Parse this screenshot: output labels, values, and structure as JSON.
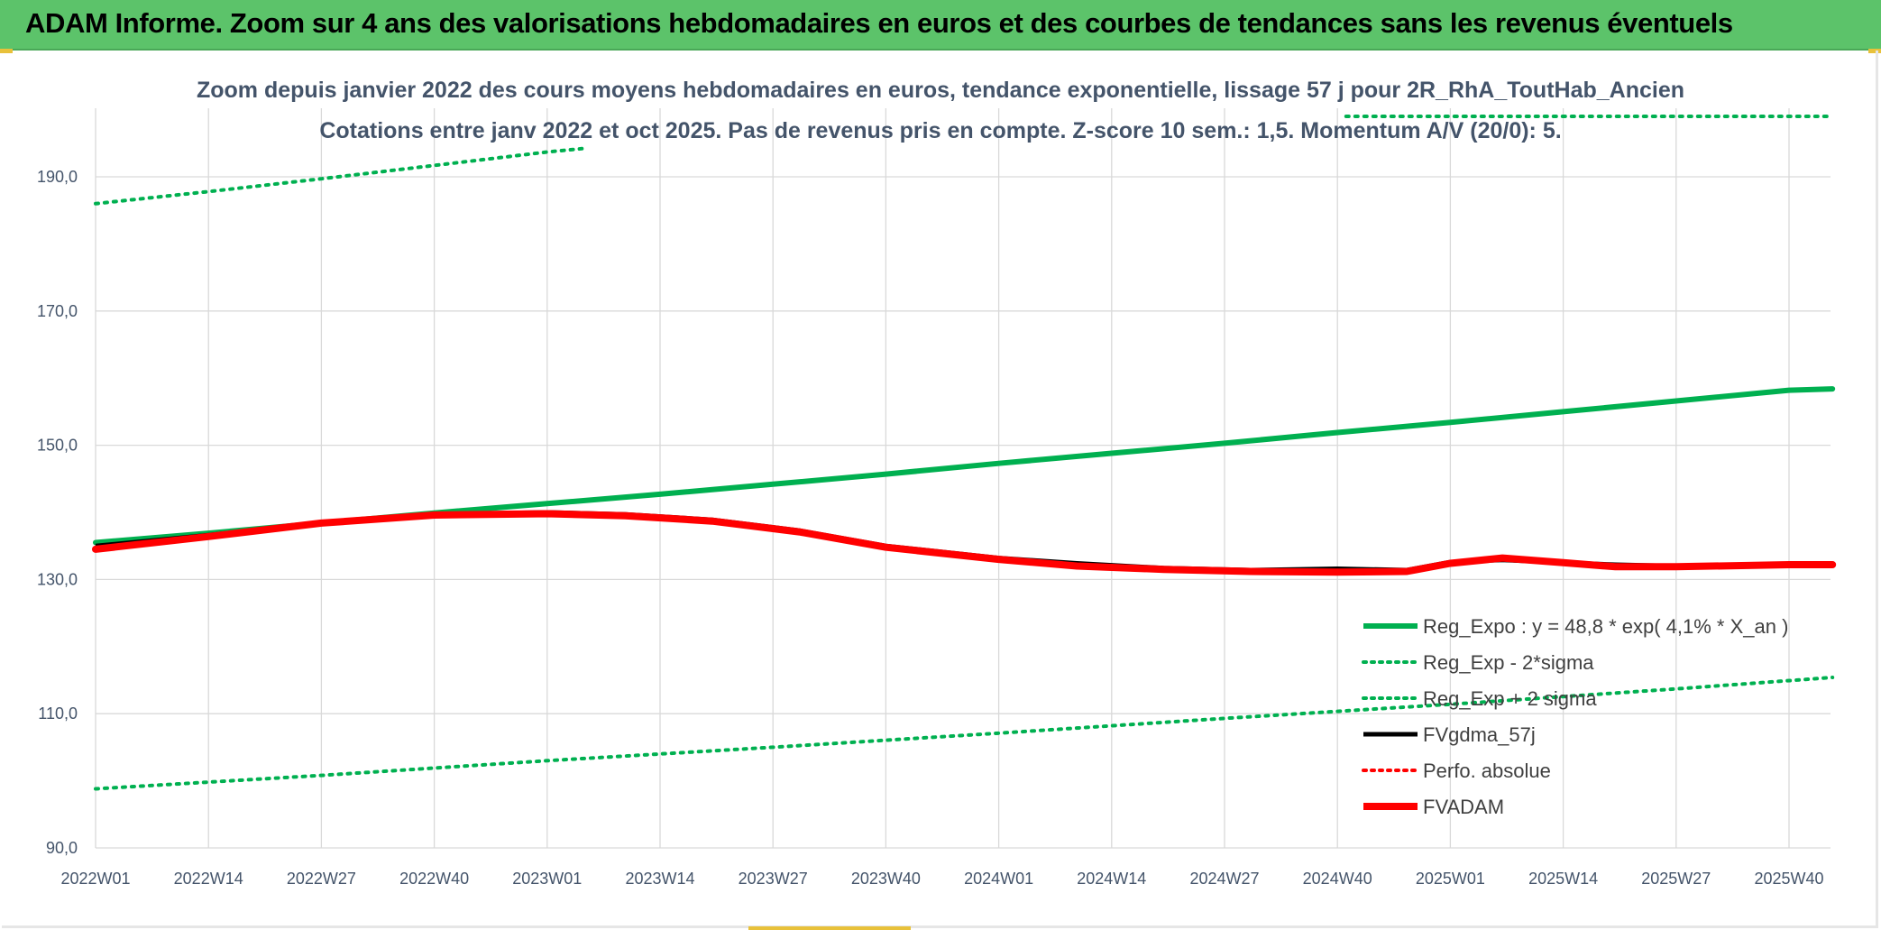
{
  "banner": {
    "title": "ADAM Informe. Zoom sur 4 ans des valorisations hebdomadaires en euros et des courbes de tendances sans les revenus éventuels"
  },
  "colors": {
    "banner": "#5cc36a",
    "trend": "#00b050",
    "smooth": "#000000",
    "price": "#ff0000",
    "grid": "#d9d9d9",
    "text": "#44546a"
  },
  "chart_data": {
    "type": "line",
    "title": "Zoom depuis janvier 2022 des cours moyens hebdomadaires en euros, tendance exponentielle, lissage 57 j pour 2R_RhA_ToutHab_Ancien",
    "subtitle": "Cotations entre janv 2022 et oct 2025. Pas de revenus pris en compte. Z-score 10 sem.: 1,5. Momentum A/V (20/0): 5.",
    "x_tick_labels": [
      "2022W01",
      "2022W14",
      "2022W27",
      "2022W40",
      "2023W01",
      "2023W14",
      "2023W27",
      "2023W40",
      "2024W01",
      "2024W14",
      "2024W27",
      "2024W40",
      "2025W01",
      "2025W14",
      "2025W27",
      "2025W40"
    ],
    "y_tick_labels": [
      "90,0",
      "110,0",
      "130,0",
      "150,0",
      "170,0",
      "190,0"
    ],
    "ylim": [
      88,
      199
    ],
    "grid": true,
    "legend_position": "right",
    "series": [
      {
        "name": "Reg_Expo : y = 48,8 * exp( 4,1% *  X_an )",
        "style": "solid-thick",
        "color": "#00b050",
        "x": [
          "2022W01",
          "2022W14",
          "2022W27",
          "2022W40",
          "2023W01",
          "2023W14",
          "2023W27",
          "2023W40",
          "2024W01",
          "2024W14",
          "2024W27",
          "2024W40",
          "2025W01",
          "2025W14",
          "2025W27",
          "2025W40",
          "2025W45"
        ],
        "values": [
          135.5,
          136.9,
          138.4,
          139.9,
          141.3,
          142.7,
          144.2,
          145.7,
          147.3,
          148.8,
          150.3,
          151.9,
          153.4,
          155.0,
          156.6,
          158.2,
          158.4
        ]
      },
      {
        "name": "Reg_Exp - 2*sigma",
        "style": "dotted",
        "color": "#00b050",
        "x": [
          "2022W01",
          "2022W27",
          "2023W01",
          "2023W27",
          "2024W01",
          "2024W27",
          "2025W01",
          "2025W27",
          "2025W45"
        ],
        "values": [
          98.8,
          100.8,
          103.0,
          105.0,
          107.1,
          109.3,
          111.4,
          113.7,
          115.4
        ]
      },
      {
        "name": "Reg_Exp + 2 sigma",
        "style": "dotted",
        "color": "#00b050",
        "x": [
          "2022W01",
          "2022W14",
          "2022W27",
          "2022W40",
          "2023W01",
          "2023W05"
        ],
        "values": [
          186.0,
          187.8,
          189.7,
          191.7,
          193.7,
          194.2
        ]
      },
      {
        "name": "FVgdma_57j",
        "style": "solid",
        "color": "#000000",
        "x": [
          "2022W01",
          "2022W14",
          "2022W27",
          "2022W40",
          "2023W01",
          "2023W10",
          "2023W20",
          "2023W30",
          "2023W40",
          "2024W01",
          "2024W10",
          "2024W20",
          "2024W30",
          "2024W40",
          "2024W48",
          "2025W01",
          "2025W07",
          "2025W14",
          "2025W20",
          "2025W27",
          "2025W40",
          "2025W45"
        ],
        "values": [
          135.0,
          136.6,
          138.4,
          139.7,
          140.0,
          139.7,
          138.9,
          137.3,
          135.0,
          133.2,
          132.4,
          131.7,
          131.4,
          131.6,
          131.4,
          132.6,
          132.9,
          132.5,
          132.2,
          132.0,
          132.2,
          132.2
        ]
      },
      {
        "name": "Perfo. absolue",
        "style": "dotted",
        "color": "#ff0000",
        "x": [],
        "values": []
      },
      {
        "name": "FVADAM",
        "style": "solid-thick",
        "color": "#ff0000",
        "x": [
          "2022W01",
          "2022W14",
          "2022W27",
          "2022W40",
          "2023W01",
          "2023W10",
          "2023W20",
          "2023W30",
          "2023W40",
          "2024W01",
          "2024W10",
          "2024W20",
          "2024W30",
          "2024W40",
          "2024W48",
          "2025W01",
          "2025W07",
          "2025W14",
          "2025W20",
          "2025W27",
          "2025W40",
          "2025W45"
        ],
        "values": [
          134.5,
          136.4,
          138.4,
          139.6,
          139.8,
          139.5,
          138.7,
          137.1,
          134.8,
          133.0,
          132.0,
          131.5,
          131.2,
          131.1,
          131.2,
          132.4,
          133.2,
          132.5,
          131.9,
          131.9,
          132.2,
          132.2
        ]
      }
    ]
  }
}
